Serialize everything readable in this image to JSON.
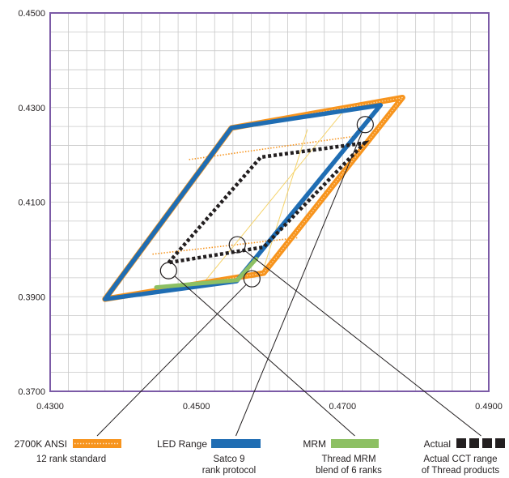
{
  "chart_data": {
    "type": "line",
    "xlim": [
      0.43,
      0.49
    ],
    "ylim": [
      0.37,
      0.45
    ],
    "x_ticks": [
      "0.4300",
      "0.4500",
      "0.4700",
      "0.4900"
    ],
    "x_tick_values": [
      0.43,
      0.45,
      0.47,
      0.49
    ],
    "y_ticks": [
      "0.4500",
      "0.4300",
      "0.4100",
      "0.3900",
      "0.3700"
    ],
    "y_tick_values": [
      0.45,
      0.43,
      0.41,
      0.39,
      0.37
    ],
    "grid": true,
    "frame_color": "#7b5aa6",
    "grid_color": "#c8c8c8",
    "series": [
      {
        "key": "ansi",
        "color": "#f7941d",
        "points": [
          [
            0.4375,
            0.3895
          ],
          [
            0.4548,
            0.4257
          ],
          [
            0.4782,
            0.4321
          ],
          [
            0.4592,
            0.395
          ],
          [
            0.4375,
            0.3895
          ]
        ]
      },
      {
        "key": "led",
        "color": "#1f6db3",
        "points": [
          [
            0.4375,
            0.3895
          ],
          [
            0.4548,
            0.4257
          ],
          [
            0.4752,
            0.4305
          ],
          [
            0.4555,
            0.3933
          ],
          [
            0.4375,
            0.3895
          ]
        ]
      },
      {
        "key": "mrm",
        "color": "#8dc063",
        "points": [
          [
            0.4445,
            0.392
          ],
          [
            0.4556,
            0.3935
          ],
          [
            0.4582,
            0.398
          ]
        ]
      },
      {
        "key": "actual",
        "color": "#231f20",
        "points": [
          [
            0.4462,
            0.3972
          ],
          [
            0.4588,
            0.4195
          ],
          [
            0.473,
            0.4225
          ],
          [
            0.4592,
            0.4005
          ],
          [
            0.4462,
            0.3972
          ]
        ]
      }
    ],
    "ansi_grid_lines": [
      [
        [
          0.449,
          0.419
        ],
        [
          0.472,
          0.424
        ]
      ],
      [
        [
          0.444,
          0.399
        ],
        [
          0.464,
          0.4025
        ]
      ],
      [
        [
          0.459,
          0.395
        ],
        [
          0.4652,
          0.4254
        ]
      ],
      [
        [
          0.4505,
          0.392
        ],
        [
          0.47,
          0.429
        ]
      ]
    ],
    "callout_circles": [
      [
        0.4731,
        0.4264
      ],
      [
        0.4462,
        0.3955
      ],
      [
        0.4556,
        0.401
      ],
      [
        0.4576,
        0.3938
      ]
    ],
    "legend": [
      {
        "key": "ansi",
        "label": "2700K ANSI",
        "sub": [
          "12 rank standard"
        ],
        "swatch": "#f7941d",
        "style": "orange-dotted"
      },
      {
        "key": "led",
        "label": "LED Range",
        "sub": [
          "Satco 9",
          "rank protocol"
        ],
        "swatch": "#1f6db3",
        "style": "solid"
      },
      {
        "key": "mrm",
        "label": "MRM",
        "sub": [
          "Thread MRM",
          "blend of 6 ranks"
        ],
        "swatch": "#8dc063",
        "style": "solid"
      },
      {
        "key": "actual",
        "label": "Actual",
        "sub": [
          "Actual CCT range",
          "of Thread products"
        ],
        "swatch": "#231f20",
        "style": "blocks"
      }
    ]
  }
}
